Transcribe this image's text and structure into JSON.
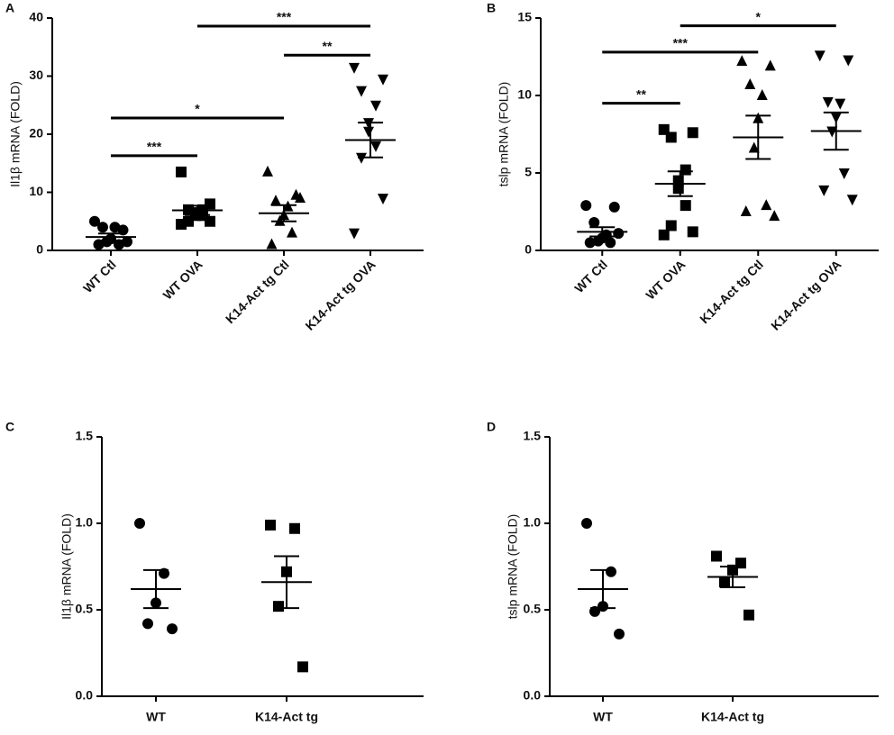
{
  "chart_data": [
    {
      "type": "scatter",
      "panel": "A",
      "ylabel": "Il1β mRNA (FOLD)",
      "categories": [
        "WT Ctl",
        "WT OVA",
        "K14-Act tg Ctl",
        "K14-Act tg OVA"
      ],
      "groups": [
        {
          "marker": "circle",
          "values": [
            5,
            3.5,
            4,
            4,
            2,
            1.5,
            1,
            1,
            1.5
          ],
          "mean": 2.3,
          "sem": 0.6
        },
        {
          "marker": "square",
          "values": [
            13.5,
            8,
            7,
            7,
            6.5,
            6,
            6,
            5,
            5,
            4.5
          ],
          "mean": 6.9,
          "sem": 0.8
        },
        {
          "marker": "triangle",
          "values": [
            13.5,
            9.5,
            8.5,
            7.5,
            6,
            5,
            3,
            1,
            9
          ],
          "mean": 6.4,
          "sem": 1.4
        },
        {
          "marker": "triangle-down",
          "values": [
            31.5,
            29.5,
            27.5,
            25,
            22,
            20.5,
            18,
            16,
            9,
            3
          ],
          "mean": 19,
          "sem": 3
        }
      ],
      "ylim": [
        0,
        40
      ],
      "yticks": [
        0,
        10,
        20,
        30,
        40
      ],
      "significance": [
        {
          "from": 0,
          "to": 1,
          "y": 16.3,
          "label": "***"
        },
        {
          "from": 0,
          "to": 2,
          "y": 22.8,
          "label": "*"
        },
        {
          "from": 2,
          "to": 3,
          "y": 33.6,
          "label": "**"
        },
        {
          "from": 1,
          "to": 3,
          "y": 38.6,
          "label": "***"
        }
      ]
    },
    {
      "type": "scatter",
      "panel": "B",
      "ylabel": "tslp mRNA (FOLD)",
      "categories": [
        "WT Ctl",
        "WT OVA",
        "K14-Act tg Ctl",
        "K14-Act tg OVA"
      ],
      "groups": [
        {
          "marker": "circle",
          "values": [
            2.9,
            2.8,
            1.8,
            1.0,
            0.8,
            0.6,
            0.5,
            0.5,
            1.1
          ],
          "mean": 1.2,
          "sem": 0.3
        },
        {
          "marker": "square",
          "values": [
            7.8,
            7.6,
            7.3,
            5.2,
            4.5,
            4,
            2.9,
            1.6,
            1.2,
            1.0
          ],
          "mean": 4.3,
          "sem": 0.8
        },
        {
          "marker": "triangle",
          "values": [
            12.2,
            11.9,
            10.7,
            10.0,
            8.5,
            6.6,
            2.9,
            2.5,
            2.2
          ],
          "mean": 7.3,
          "sem": 1.4
        },
        {
          "marker": "triangle-down",
          "values": [
            12.6,
            12.3,
            9.6,
            9.5,
            8.6,
            7.7,
            5.0,
            3.9,
            3.3
          ],
          "mean": 7.7,
          "sem": 1.2
        }
      ],
      "ylim": [
        0,
        15
      ],
      "yticks": [
        0,
        5,
        10,
        15
      ],
      "significance": [
        {
          "from": 0,
          "to": 1,
          "y": 9.5,
          "label": "**"
        },
        {
          "from": 0,
          "to": 2,
          "y": 12.8,
          "label": "***"
        },
        {
          "from": 1,
          "to": 3,
          "y": 14.5,
          "label": "*"
        }
      ]
    },
    {
      "type": "scatter",
      "panel": "C",
      "ylabel": "Il1β mRNA  (FOLD)",
      "categories": [
        "WT",
        "K14-Act tg"
      ],
      "groups": [
        {
          "marker": "circle",
          "values": [
            1.0,
            0.71,
            0.54,
            0.42,
            0.39
          ],
          "mean": 0.62,
          "sem": 0.11
        },
        {
          "marker": "square",
          "values": [
            0.99,
            0.97,
            0.72,
            0.52,
            0.17
          ],
          "mean": 0.66,
          "sem": 0.15
        }
      ],
      "ylim": [
        0,
        1.5
      ],
      "yticks": [
        {
          "value": 0,
          "label": "0.0"
        },
        0.5,
        {
          "value": 1,
          "label": "1.0"
        },
        1.5
      ],
      "significance": []
    },
    {
      "type": "scatter",
      "panel": "D",
      "ylabel": "tslp mRNA (FOLD)",
      "categories": [
        "WT",
        "K14-Act tg"
      ],
      "groups": [
        {
          "marker": "circle",
          "values": [
            1.0,
            0.72,
            0.52,
            0.49,
            0.36
          ],
          "mean": 0.62,
          "sem": 0.11
        },
        {
          "marker": "square",
          "values": [
            0.81,
            0.77,
            0.73,
            0.66,
            0.47
          ],
          "mean": 0.69,
          "sem": 0.06
        }
      ],
      "ylim": [
        0,
        1.5
      ],
      "yticks": [
        {
          "value": 0,
          "label": "0.0"
        },
        0.5,
        {
          "value": 1,
          "label": "1.0"
        },
        1.5
      ],
      "significance": []
    }
  ]
}
